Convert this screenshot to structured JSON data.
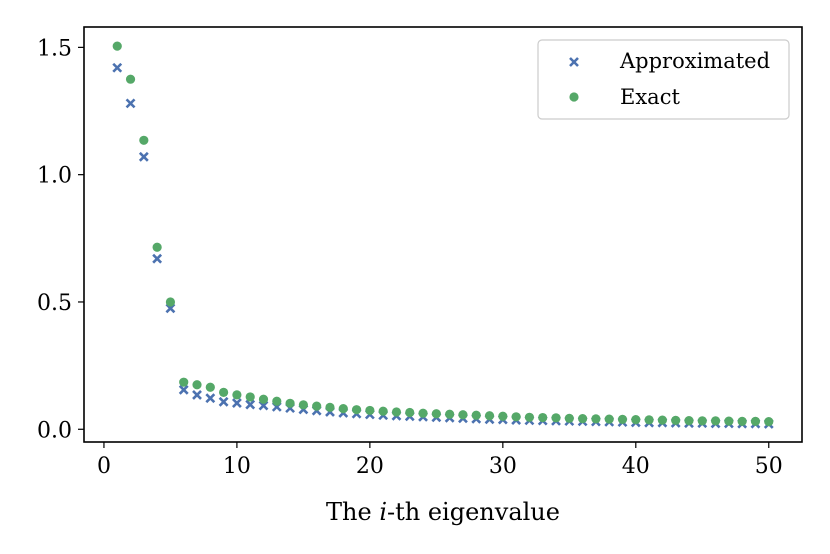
{
  "chart_data": {
    "type": "scatter",
    "title": "",
    "xlabel": "The i-th eigenvalue",
    "xlabel_parts": {
      "prefix": "The ",
      "var": "i",
      "suffix": "-th eigenvalue"
    },
    "ylabel": "",
    "xlim": [
      -1.5,
      52.5
    ],
    "ylim": [
      -0.05,
      1.58
    ],
    "xticks": [
      0,
      10,
      20,
      30,
      40,
      50
    ],
    "xtick_labels": [
      "0",
      "10",
      "20",
      "30",
      "40",
      "50"
    ],
    "yticks": [
      0.0,
      0.5,
      1.0,
      1.5
    ],
    "ytick_labels": [
      "0.0",
      "0.5",
      "1.0",
      "1.5"
    ],
    "grid": false,
    "legend_position": "top-right",
    "x": [
      1,
      2,
      3,
      4,
      5,
      6,
      7,
      8,
      9,
      10,
      11,
      12,
      13,
      14,
      15,
      16,
      17,
      18,
      19,
      20,
      21,
      22,
      23,
      24,
      25,
      26,
      27,
      28,
      29,
      30,
      31,
      32,
      33,
      34,
      35,
      36,
      37,
      38,
      39,
      40,
      41,
      42,
      43,
      44,
      45,
      46,
      47,
      48,
      49,
      50
    ],
    "series": [
      {
        "name": "Approximated",
        "marker": "x",
        "color": "#4c72b0",
        "values": [
          1.42,
          1.28,
          1.07,
          0.67,
          0.475,
          0.155,
          0.135,
          0.122,
          0.108,
          0.103,
          0.097,
          0.093,
          0.088,
          0.083,
          0.078,
          0.073,
          0.068,
          0.064,
          0.061,
          0.058,
          0.055,
          0.053,
          0.051,
          0.049,
          0.047,
          0.045,
          0.043,
          0.041,
          0.039,
          0.038,
          0.036,
          0.035,
          0.034,
          0.033,
          0.032,
          0.031,
          0.03,
          0.029,
          0.028,
          0.027,
          0.026,
          0.026,
          0.025,
          0.024,
          0.024,
          0.023,
          0.023,
          0.022,
          0.022,
          0.021
        ]
      },
      {
        "name": "Exact",
        "marker": "o",
        "color": "#55a868",
        "values": [
          1.505,
          1.375,
          1.135,
          0.715,
          0.5,
          0.185,
          0.175,
          0.165,
          0.145,
          0.135,
          0.127,
          0.118,
          0.11,
          0.102,
          0.096,
          0.091,
          0.086,
          0.081,
          0.077,
          0.074,
          0.071,
          0.068,
          0.066,
          0.063,
          0.061,
          0.059,
          0.057,
          0.055,
          0.053,
          0.051,
          0.049,
          0.047,
          0.046,
          0.045,
          0.043,
          0.042,
          0.041,
          0.04,
          0.039,
          0.038,
          0.037,
          0.036,
          0.035,
          0.034,
          0.033,
          0.033,
          0.032,
          0.031,
          0.031,
          0.03
        ]
      }
    ]
  }
}
